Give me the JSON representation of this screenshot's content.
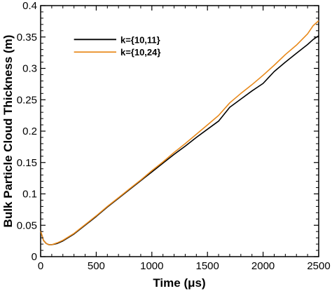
{
  "chart_data": {
    "type": "line",
    "xlabel": "Time (μs)",
    "ylabel": "Bulk Particle Cloud Thickness (m)",
    "xlim": [
      0,
      2500
    ],
    "ylim": [
      0,
      0.4
    ],
    "xticks": [
      0,
      500,
      1000,
      1500,
      2000,
      2500
    ],
    "xtick_labels": [
      "0",
      "500",
      "1000",
      "1500",
      "2000",
      "2500"
    ],
    "yticks": [
      0,
      0.05,
      0.1,
      0.15,
      0.2,
      0.25,
      0.3,
      0.35,
      0.4
    ],
    "ytick_labels": [
      "0",
      "0.05",
      "0.1",
      "0.15",
      "0.2",
      "0.25",
      "0.3",
      "0.35",
      "0.4"
    ],
    "grid": false,
    "legend_position": "top-left",
    "series": [
      {
        "name": "k={10,11}",
        "color": "#000000",
        "x": [
          0,
          10,
          25,
          50,
          75,
          100,
          150,
          200,
          300,
          400,
          500,
          600,
          700,
          800,
          900,
          1000,
          1100,
          1200,
          1300,
          1400,
          1500,
          1600,
          1700,
          1800,
          1900,
          2000,
          2100,
          2200,
          2300,
          2400,
          2450,
          2500
        ],
        "y": [
          0.041,
          0.035,
          0.026,
          0.021,
          0.019,
          0.019,
          0.021,
          0.025,
          0.036,
          0.05,
          0.064,
          0.079,
          0.093,
          0.107,
          0.121,
          0.135,
          0.149,
          0.163,
          0.176,
          0.19,
          0.203,
          0.216,
          0.238,
          0.251,
          0.264,
          0.276,
          0.295,
          0.31,
          0.324,
          0.338,
          0.346,
          0.352
        ]
      },
      {
        "name": "k={10,24}",
        "color": "#e8891a",
        "x": [
          0,
          10,
          25,
          50,
          75,
          100,
          150,
          200,
          300,
          400,
          500,
          600,
          700,
          800,
          900,
          1000,
          1100,
          1200,
          1300,
          1400,
          1500,
          1600,
          1700,
          1800,
          1900,
          2000,
          2100,
          2200,
          2300,
          2400,
          2450,
          2500
        ],
        "y": [
          0.041,
          0.035,
          0.026,
          0.021,
          0.019,
          0.019,
          0.022,
          0.026,
          0.037,
          0.051,
          0.065,
          0.08,
          0.094,
          0.108,
          0.122,
          0.137,
          0.151,
          0.166,
          0.18,
          0.195,
          0.21,
          0.225,
          0.245,
          0.26,
          0.274,
          0.289,
          0.305,
          0.322,
          0.337,
          0.355,
          0.368,
          0.376
        ]
      }
    ]
  }
}
